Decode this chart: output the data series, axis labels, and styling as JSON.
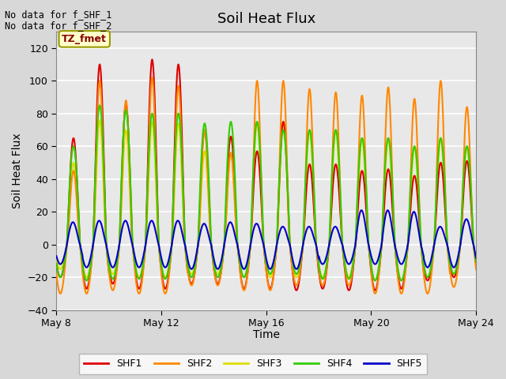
{
  "title": "Soil Heat Flux",
  "ylabel": "Soil Heat Flux",
  "xlabel": "Time",
  "top_left_text_lines": [
    "No data for f_SHF_1",
    "No data for f_SHF_2"
  ],
  "tz_label": "TZ_fmet",
  "ylim": [
    -40,
    130
  ],
  "yticks": [
    -40,
    -20,
    0,
    20,
    40,
    60,
    80,
    100,
    120
  ],
  "xtick_labels": [
    "May 8",
    "May 12",
    "May 16",
    "May 20",
    "May 24"
  ],
  "colors": {
    "SHF1": "#dd0000",
    "SHF2": "#ff8800",
    "SHF3": "#dddd00",
    "SHF4": "#33cc00",
    "SHF5": "#0000cc"
  },
  "bg_color": "#e8e8e8",
  "grid_color": "#ffffff",
  "figsize": [
    6.4,
    4.8
  ],
  "dpi": 100,
  "title_fontsize": 13,
  "axis_label_fontsize": 10,
  "tick_fontsize": 9,
  "linewidth": 1.5
}
